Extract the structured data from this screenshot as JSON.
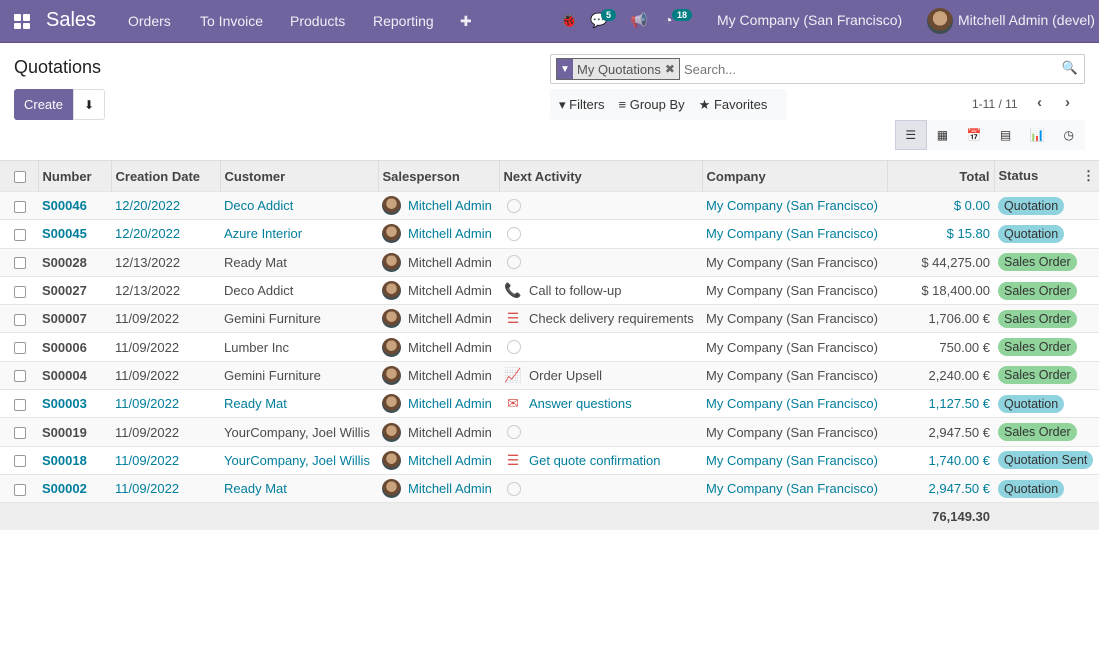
{
  "nav": {
    "app": "Sales",
    "menus": [
      "Orders",
      "To Invoice",
      "Products",
      "Reporting"
    ],
    "plus": "✚",
    "messages_count": "5",
    "activities_count": "18",
    "company": "My Company (San Francisco)",
    "user": "Mitchell Admin (devel)",
    "brand_color": "#71639e"
  },
  "page": {
    "title": "Quotations",
    "create": "Create"
  },
  "search": {
    "facet": "My Quotations",
    "placeholder": "Search..."
  },
  "filters": {
    "filters": "Filters",
    "group_by": "Group By",
    "favorites": "Favorites"
  },
  "pager": {
    "text": "1-11 / 11"
  },
  "views": [
    "list",
    "kanban",
    "calendar",
    "pivot",
    "graph",
    "activity"
  ],
  "table": {
    "headers": [
      "Number",
      "Creation Date",
      "Customer",
      "Salesperson",
      "Next Activity",
      "Company",
      "Total",
      "Status"
    ],
    "rows": [
      {
        "number": "S00046",
        "date": "12/20/2022",
        "customer": "Deco Addict",
        "salesperson": "Mitchell Admin",
        "activity": "",
        "activity_icon": "clock",
        "company": "My Company (San Francisco)",
        "total": "$ 0.00",
        "status": "Quotation",
        "highlight": true
      },
      {
        "number": "S00045",
        "date": "12/20/2022",
        "customer": "Azure Interior",
        "salesperson": "Mitchell Admin",
        "activity": "",
        "activity_icon": "clock",
        "company": "My Company (San Francisco)",
        "total": "$ 15.80",
        "status": "Quotation",
        "highlight": true
      },
      {
        "number": "S00028",
        "date": "12/13/2022",
        "customer": "Ready Mat",
        "salesperson": "Mitchell Admin",
        "activity": "",
        "activity_icon": "clock",
        "company": "My Company (San Francisco)",
        "total": "$ 44,275.00",
        "status": "Sales Order",
        "highlight": false
      },
      {
        "number": "S00027",
        "date": "12/13/2022",
        "customer": "Deco Addict",
        "salesperson": "Mitchell Admin",
        "activity": "Call to follow-up",
        "activity_icon": "phone",
        "company": "My Company (San Francisco)",
        "total": "$ 18,400.00",
        "status": "Sales Order",
        "highlight": false
      },
      {
        "number": "S00007",
        "date": "11/09/2022",
        "customer": "Gemini Furniture",
        "salesperson": "Mitchell Admin",
        "activity": "Check delivery requirements",
        "activity_icon": "tasks",
        "company": "My Company (San Francisco)",
        "total": "1,706.00 €",
        "status": "Sales Order",
        "highlight": false
      },
      {
        "number": "S00006",
        "date": "11/09/2022",
        "customer": "Lumber Inc",
        "salesperson": "Mitchell Admin",
        "activity": "",
        "activity_icon": "clock",
        "company": "My Company (San Francisco)",
        "total": "750.00 €",
        "status": "Sales Order",
        "highlight": false
      },
      {
        "number": "S00004",
        "date": "11/09/2022",
        "customer": "Gemini Furniture",
        "salesperson": "Mitchell Admin",
        "activity": "Order Upsell",
        "activity_icon": "line-chart",
        "company": "My Company (San Francisco)",
        "total": "2,240.00 €",
        "status": "Sales Order",
        "highlight": false
      },
      {
        "number": "S00003",
        "date": "11/09/2022",
        "customer": "Ready Mat",
        "salesperson": "Mitchell Admin",
        "activity": "Answer questions",
        "activity_icon": "envelope",
        "company": "My Company (San Francisco)",
        "total": "1,127.50 €",
        "status": "Quotation",
        "highlight": true
      },
      {
        "number": "S00019",
        "date": "11/09/2022",
        "customer": "YourCompany, Joel Willis",
        "salesperson": "Mitchell Admin",
        "activity": "",
        "activity_icon": "clock",
        "company": "My Company (San Francisco)",
        "total": "2,947.50 €",
        "status": "Sales Order",
        "highlight": false
      },
      {
        "number": "S00018",
        "date": "11/09/2022",
        "customer": "YourCompany, Joel Willis",
        "salesperson": "Mitchell Admin",
        "activity": "Get quote confirmation",
        "activity_icon": "tasks",
        "company": "My Company (San Francisco)",
        "total": "1,740.00 €",
        "status": "Quotation Sent",
        "highlight": true
      },
      {
        "number": "S00002",
        "date": "11/09/2022",
        "customer": "Ready Mat",
        "salesperson": "Mitchell Admin",
        "activity": "",
        "activity_icon": "clock",
        "company": "My Company (San Francisco)",
        "total": "2,947.50 €",
        "status": "Quotation",
        "highlight": true
      }
    ],
    "sum_total": "76,149.30",
    "status_colors": {
      "Quotation": "#8fd3df",
      "Quotation Sent": "#8fd3df",
      "Sales Order": "#90d49c"
    }
  }
}
